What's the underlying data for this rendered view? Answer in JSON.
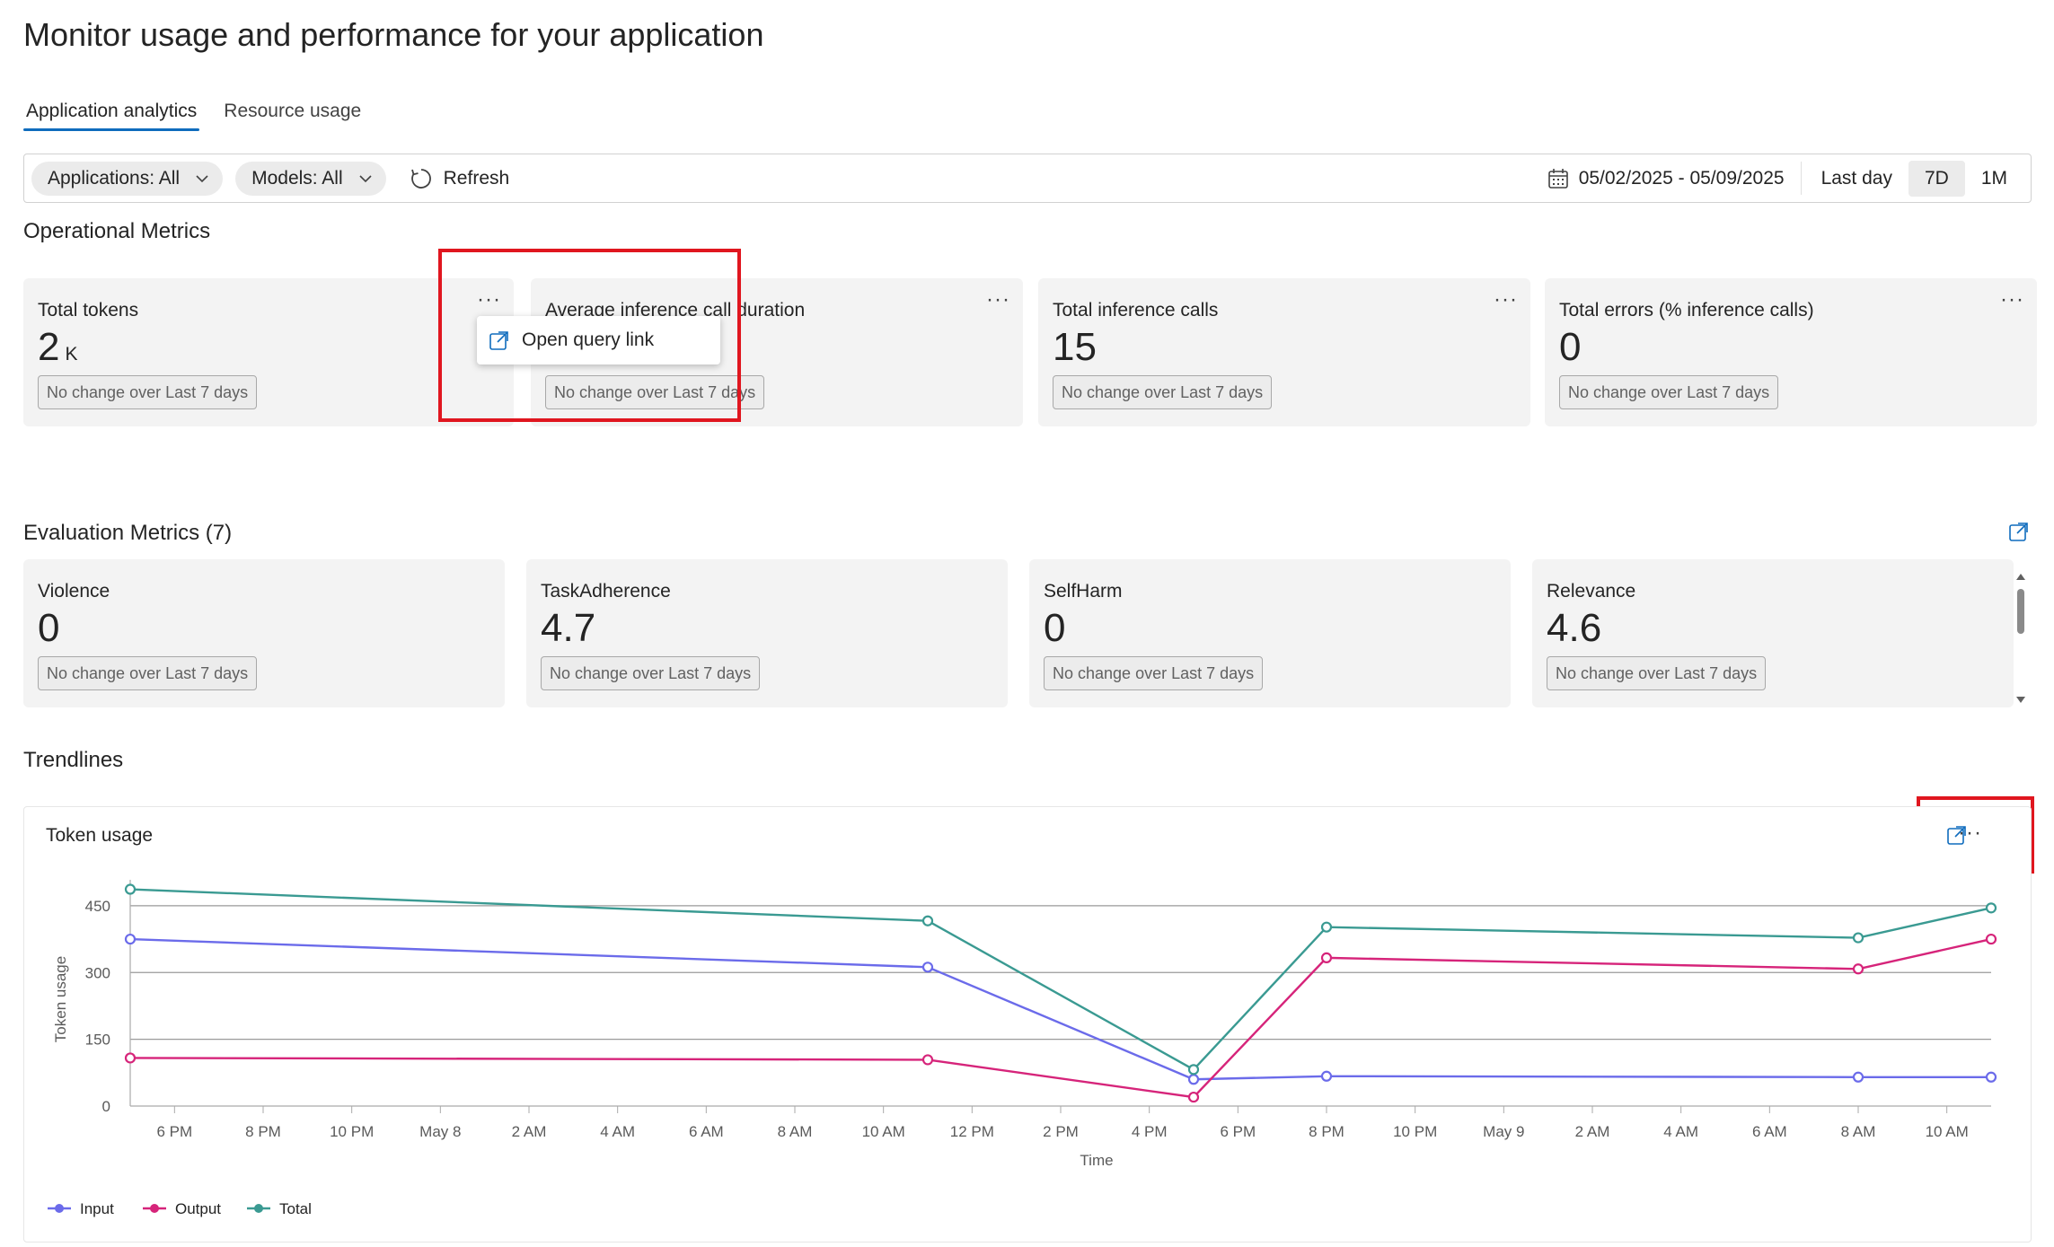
{
  "page": {
    "title": "Monitor usage and performance for your application"
  },
  "tabs": [
    {
      "label": "Application analytics",
      "active": true
    },
    {
      "label": "Resource usage",
      "active": false
    }
  ],
  "toolbar": {
    "applications_filter": "Applications: All",
    "models_filter": "Models: All",
    "refresh_label": "Refresh",
    "date_range": "05/02/2025 - 05/09/2025",
    "ranges": [
      {
        "label": "Last day",
        "selected": false
      },
      {
        "label": "7D",
        "selected": true
      },
      {
        "label": "1M",
        "selected": false
      }
    ]
  },
  "operational": {
    "title": "Operational Metrics",
    "cards": [
      {
        "label": "Total tokens",
        "value": "2",
        "unit": "K",
        "badge": "No change over Last 7 days"
      },
      {
        "label": "Average inference call duration",
        "value": "",
        "unit": "",
        "badge": "No change over Last 7 days"
      },
      {
        "label": "Total inference calls",
        "value": "15",
        "unit": "",
        "badge": "No change over Last 7 days"
      },
      {
        "label": "Total errors (% inference calls)",
        "value": "0",
        "unit": "",
        "badge": "No change over Last 7 days"
      }
    ],
    "menu_item": "Open query link",
    "more_glyph": "···"
  },
  "evaluation": {
    "title": "Evaluation Metrics (7)",
    "cards": [
      {
        "label": "Violence",
        "value": "0",
        "badge": "No change over Last 7 days"
      },
      {
        "label": "TaskAdherence",
        "value": "4.7",
        "badge": "No change over Last 7 days"
      },
      {
        "label": "SelfHarm",
        "value": "0",
        "badge": "No change over Last 7 days"
      },
      {
        "label": "Relevance",
        "value": "4.6",
        "badge": "No change over Last 7 days"
      }
    ]
  },
  "trendlines": {
    "title": "Trendlines",
    "chart_title": "Token usage"
  },
  "colors": {
    "accent": "#0f6cbd",
    "highlight": "#e0161f",
    "input": "#6b6bea",
    "output": "#d6247a",
    "total": "#3a9a92"
  },
  "icons": [
    "chevron-down-icon",
    "refresh-icon",
    "calendar-icon",
    "popout-icon",
    "more-icon"
  ],
  "chart_data": {
    "type": "line",
    "ylabel": "Token usage",
    "xlabel": "Time",
    "ylim": [
      0,
      480
    ],
    "yticks": [
      0,
      150,
      300,
      450
    ],
    "xticks": [
      {
        "label": "6 PM",
        "h": 1
      },
      {
        "label": "8 PM",
        "h": 3
      },
      {
        "label": "10 PM",
        "h": 5
      },
      {
        "label": "May 8",
        "h": 7
      },
      {
        "label": "2 AM",
        "h": 9
      },
      {
        "label": "4 AM",
        "h": 11
      },
      {
        "label": "6 AM",
        "h": 13
      },
      {
        "label": "8 AM",
        "h": 15
      },
      {
        "label": "10 AM",
        "h": 17
      },
      {
        "label": "12 PM",
        "h": 19
      },
      {
        "label": "2 PM",
        "h": 21
      },
      {
        "label": "4 PM",
        "h": 23
      },
      {
        "label": "6 PM",
        "h": 25
      },
      {
        "label": "8 PM",
        "h": 27
      },
      {
        "label": "10 PM",
        "h": 29
      },
      {
        "label": "May 9",
        "h": 31
      },
      {
        "label": "2 AM",
        "h": 33
      },
      {
        "label": "4 AM",
        "h": 35
      },
      {
        "label": "6 AM",
        "h": 37
      },
      {
        "label": "8 AM",
        "h": 39
      },
      {
        "label": "10 AM",
        "h": 41
      }
    ],
    "x": [
      0,
      18,
      24,
      27,
      39,
      42
    ],
    "series": [
      {
        "name": "Input",
        "color": "#6b6bea",
        "values": [
          375,
          312,
          60,
          67,
          65,
          65
        ]
      },
      {
        "name": "Output",
        "color": "#d6247a",
        "values": [
          108,
          104,
          20,
          333,
          308,
          375
        ]
      },
      {
        "name": "Total",
        "color": "#3a9a92",
        "values": [
          487,
          416,
          82,
          402,
          378,
          445
        ]
      }
    ],
    "legend": "bottom-left",
    "grid": true
  }
}
